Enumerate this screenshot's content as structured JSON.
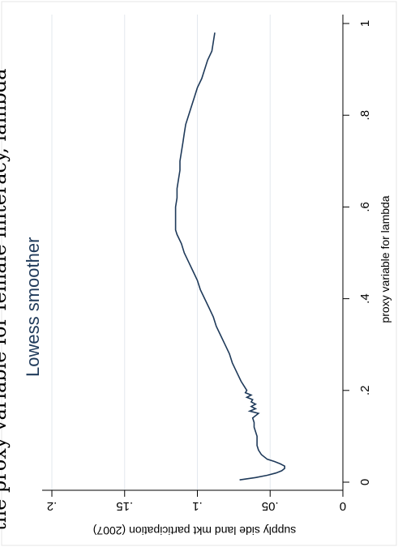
{
  "chart_data": {
    "type": "line",
    "title": "Lowess smoother",
    "partial_top_text": "the proxy variable for female illiteracy, lambda",
    "xlabel": "proxy variable for lambda",
    "ylabel": "supply side land mkt participation (2007)",
    "xlim": [
      0,
      1
    ],
    "ylim": [
      0,
      0.2
    ],
    "x_ticks": [
      0,
      0.2,
      0.4,
      0.6,
      0.8,
      1
    ],
    "x_tick_labels": [
      "0",
      ".2",
      ".4",
      ".6",
      ".8",
      "1"
    ],
    "y_ticks": [
      0,
      0.05,
      0.1,
      0.15,
      0.2
    ],
    "y_tick_labels": [
      "0",
      ".05",
      ".1",
      ".15",
      ".2"
    ],
    "grid": true,
    "line_color": "#1f3a5a",
    "series": [
      {
        "x": [
          0.005,
          0.01,
          0.015,
          0.02,
          0.025,
          0.03,
          0.035,
          0.04,
          0.045,
          0.05,
          0.06,
          0.07,
          0.08,
          0.09,
          0.1,
          0.11,
          0.12,
          0.13,
          0.14,
          0.15,
          0.155,
          0.16,
          0.165,
          0.17,
          0.175,
          0.18,
          0.185,
          0.19,
          0.195,
          0.2,
          0.21,
          0.22,
          0.24,
          0.26,
          0.28,
          0.3,
          0.32,
          0.34,
          0.36,
          0.38,
          0.4,
          0.42,
          0.44,
          0.46,
          0.48,
          0.5,
          0.52,
          0.54,
          0.55,
          0.56,
          0.58,
          0.6,
          0.62,
          0.64,
          0.66,
          0.68,
          0.7,
          0.72,
          0.74,
          0.76,
          0.78,
          0.8,
          0.82,
          0.84,
          0.86,
          0.88,
          0.9,
          0.92,
          0.94,
          0.96,
          0.98
        ],
        "y": [
          0.071,
          0.06,
          0.052,
          0.046,
          0.042,
          0.04,
          0.04,
          0.043,
          0.047,
          0.052,
          0.056,
          0.058,
          0.059,
          0.059,
          0.059,
          0.06,
          0.061,
          0.061,
          0.062,
          0.058,
          0.064,
          0.06,
          0.063,
          0.06,
          0.063,
          0.062,
          0.066,
          0.063,
          0.067,
          0.066,
          0.068,
          0.07,
          0.073,
          0.076,
          0.078,
          0.081,
          0.084,
          0.087,
          0.089,
          0.092,
          0.095,
          0.098,
          0.1,
          0.103,
          0.106,
          0.109,
          0.111,
          0.114,
          0.115,
          0.115,
          0.115,
          0.115,
          0.114,
          0.114,
          0.113,
          0.112,
          0.112,
          0.111,
          0.11,
          0.109,
          0.108,
          0.106,
          0.104,
          0.102,
          0.1,
          0.097,
          0.095,
          0.093,
          0.09,
          0.089,
          0.088
        ]
      }
    ]
  }
}
